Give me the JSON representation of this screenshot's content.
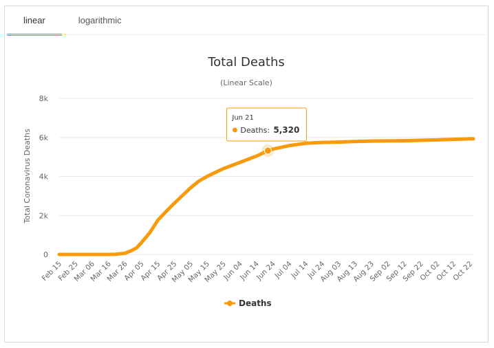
{
  "tabs": [
    {
      "label": "linear",
      "active": true
    },
    {
      "label": "logarithmic",
      "active": false
    }
  ],
  "colors": {
    "series": "#f89a0e",
    "tab_active": "#29b6f6",
    "grid": "#e6e6e6"
  },
  "tooltip": {
    "date": "Jun 21",
    "label": "Deaths:",
    "value": "5,320"
  },
  "chart_data": {
    "type": "line",
    "title": "Total Deaths",
    "subtitle": "(Linear Scale)",
    "ylabel": "Total Coronavirus Deaths",
    "xlabel": "",
    "ylim": [
      0,
      8000
    ],
    "yticks": [
      0,
      2000,
      4000,
      6000,
      8000
    ],
    "ytick_labels": [
      "0",
      "2k",
      "4k",
      "6k",
      "8k"
    ],
    "xtick_labels": [
      "Feb 15",
      "Feb 25",
      "Mar 06",
      "Mar 16",
      "Mar 26",
      "Apr 05",
      "Apr 15",
      "Apr 25",
      "May 05",
      "May 15",
      "May 25",
      "Jun 04",
      "Jun 14",
      "Jun 24",
      "Jul 04",
      "Jul 14",
      "Jul 24",
      "Aug 03",
      "Aug 13",
      "Aug 23",
      "Sep 02",
      "Sep 12",
      "Sep 22",
      "Oct 02",
      "Oct 12",
      "Oct 22"
    ],
    "grid": true,
    "legend": "bottom-center",
    "series": [
      {
        "name": "Deaths",
        "points": [
          [
            "Feb 15",
            0
          ],
          [
            "Mar 16",
            0
          ],
          [
            "Mar 20",
            10
          ],
          [
            "Mar 26",
            60
          ],
          [
            "Mar 30",
            200
          ],
          [
            "Apr 02",
            330
          ],
          [
            "Apr 05",
            600
          ],
          [
            "Apr 10",
            1100
          ],
          [
            "Apr 15",
            1750
          ],
          [
            "Apr 20",
            2200
          ],
          [
            "Apr 25",
            2620
          ],
          [
            "May 01",
            3100
          ],
          [
            "May 05",
            3420
          ],
          [
            "May 10",
            3760
          ],
          [
            "May 15",
            4000
          ],
          [
            "May 20",
            4200
          ],
          [
            "May 25",
            4400
          ],
          [
            "May 30",
            4560
          ],
          [
            "Jun 04",
            4720
          ],
          [
            "Jun 09",
            4880
          ],
          [
            "Jun 14",
            5040
          ],
          [
            "Jun 21",
            5320
          ],
          [
            "Jun 24",
            5400
          ],
          [
            "Jul 04",
            5580
          ],
          [
            "Jul 14",
            5700
          ],
          [
            "Jul 24",
            5740
          ],
          [
            "Aug 03",
            5760
          ],
          [
            "Aug 13",
            5790
          ],
          [
            "Aug 23",
            5810
          ],
          [
            "Sep 02",
            5820
          ],
          [
            "Sep 12",
            5830
          ],
          [
            "Sep 22",
            5850
          ],
          [
            "Oct 02",
            5870
          ],
          [
            "Oct 12",
            5900
          ],
          [
            "Oct 24",
            5930
          ]
        ]
      }
    ],
    "highlight": {
      "x": "Jun 21",
      "y": 5320
    }
  }
}
